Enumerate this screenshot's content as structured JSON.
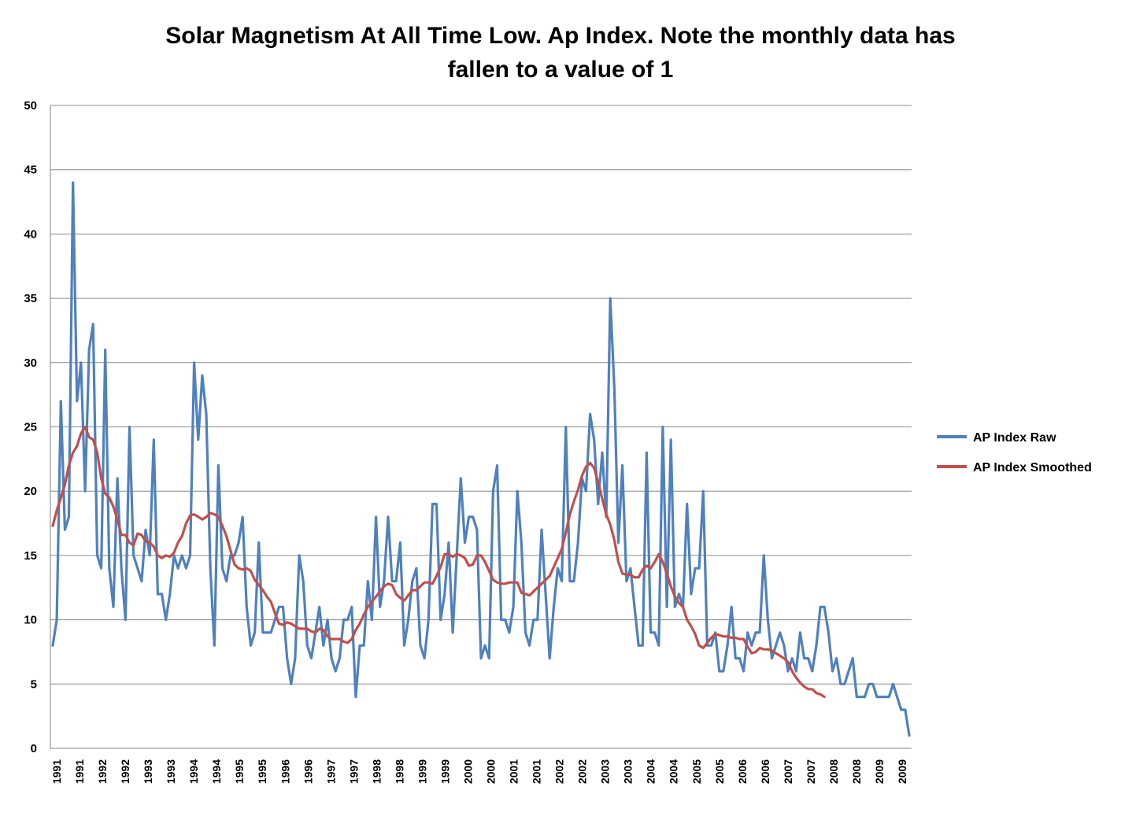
{
  "chart_data": {
    "type": "line",
    "title_lines": [
      "Solar Magnetism At All Time Low. Ap Index. Note the monthly data has",
      "fallen to a value of 1"
    ],
    "xlabel": "",
    "ylabel": "",
    "ylim": [
      0,
      50
    ],
    "ytick_labels": [
      "0",
      "5",
      "10",
      "15",
      "20",
      "25",
      "30",
      "35",
      "40",
      "45",
      "50"
    ],
    "grid": "horizontal",
    "legend_position": "right",
    "x_tick_labels": [
      "1991",
      "1991",
      "1992",
      "1992",
      "1993",
      "1993",
      "1994",
      "1994",
      "1995",
      "1995",
      "1996",
      "1996",
      "1997",
      "1997",
      "1998",
      "1998",
      "1999",
      "1999",
      "2000",
      "2000",
      "2001",
      "2001",
      "2002",
      "2002",
      "2003",
      "2003",
      "2004",
      "2004",
      "2005",
      "2005",
      "2006",
      "2006",
      "2007",
      "2007",
      "2008",
      "2008",
      "2009",
      "2009"
    ],
    "series": [
      {
        "name": "AP Index Raw",
        "color": "#4F81BD",
        "values": [
          8,
          10,
          27,
          17,
          18,
          44,
          27,
          30,
          20,
          31,
          33,
          15,
          14,
          31,
          14,
          11,
          21,
          14,
          10,
          25,
          15,
          14,
          13,
          17,
          15,
          24,
          12,
          12,
          10,
          12,
          15,
          14,
          15,
          14,
          15,
          30,
          24,
          29,
          26,
          14,
          8,
          22,
          14,
          13,
          15,
          15,
          16,
          18,
          11,
          8,
          9,
          16,
          9,
          9,
          9,
          10,
          11,
          11,
          7,
          5,
          7,
          15,
          13,
          8,
          7,
          9,
          11,
          8,
          10,
          7,
          6,
          7,
          10,
          10,
          11,
          4,
          8,
          8,
          13,
          10,
          18,
          11,
          13,
          18,
          13,
          13,
          16,
          8,
          10,
          13,
          14,
          8,
          7,
          10,
          19,
          19,
          10,
          12,
          16,
          9,
          15,
          21,
          16,
          18,
          18,
          17,
          7,
          8,
          7,
          20,
          22,
          10,
          10,
          9,
          11,
          20,
          16,
          9,
          8,
          10,
          10,
          17,
          12,
          7,
          11,
          14,
          13,
          25,
          13,
          13,
          16,
          21,
          20,
          26,
          24,
          19,
          23,
          18,
          35,
          28,
          16,
          22,
          13,
          14,
          11,
          8,
          8,
          23,
          9,
          9,
          8,
          25,
          11,
          24,
          11,
          12,
          11,
          19,
          12,
          14,
          14,
          20,
          8,
          8,
          9,
          6,
          6,
          8,
          11,
          7,
          7,
          6,
          9,
          8,
          9,
          9,
          15,
          10,
          7,
          8,
          9,
          8,
          6,
          7,
          6,
          9,
          7,
          7,
          6,
          8,
          11,
          11,
          9,
          6,
          7,
          5,
          5,
          6,
          7,
          4,
          4,
          4,
          5,
          5,
          4,
          4,
          4,
          4,
          5,
          4,
          3,
          3,
          1
        ]
      },
      {
        "name": "AP Index Smoothed",
        "color": "#C0504D",
        "values": [
          17.3,
          18.5,
          19.5,
          20.5,
          22,
          23,
          23.5,
          24.5,
          25,
          24.2,
          24,
          23,
          21,
          19.8,
          19.5,
          18.8,
          17.8,
          16.6,
          16.6,
          16.0,
          15.8,
          16.7,
          16.6,
          16.1,
          16.0,
          15.7,
          15.0,
          14.8,
          15.0,
          14.9,
          15.2,
          16,
          16.5,
          17.5,
          18.1,
          18.2,
          18.0,
          17.8,
          18.0,
          18.3,
          18.2,
          18.0,
          17.3,
          16.5,
          15.4,
          14.3,
          14.0,
          13.9,
          14.0,
          13.8,
          13.1,
          12.7,
          12.3,
          11.8,
          11.4,
          10.5,
          9.7,
          9.6,
          9.8,
          9.7,
          9.5,
          9.3,
          9.3,
          9.3,
          9.1,
          9.0,
          9.3,
          9.2,
          8.7,
          8.5,
          8.5,
          8.5,
          8.3,
          8.2,
          8.5,
          9.2,
          9.7,
          10.4,
          11.0,
          11.4,
          11.8,
          12.2,
          12.6,
          12.8,
          12.7,
          12.0,
          11.7,
          11.5,
          11.9,
          12.3,
          12.3,
          12.6,
          12.9,
          12.9,
          12.8,
          13.4,
          14.1,
          15.1,
          15.1,
          14.9,
          15.1,
          15.0,
          14.8,
          14.2,
          14.3,
          15.0,
          15.0,
          14.5,
          13.8,
          13.1,
          12.9,
          12.8,
          12.8,
          12.9,
          12.9,
          12.9,
          12.1,
          12.0,
          11.9,
          12.2,
          12.5,
          12.8,
          13.1,
          13.4,
          14.1,
          14.8,
          15.5,
          16.8,
          18.2,
          19.2,
          20.1,
          21.2,
          21.9,
          22.2,
          21.8,
          20.7,
          19.4,
          18.2,
          17.4,
          16.2,
          14.5,
          13.6,
          13.5,
          13.5,
          13.3,
          13.3,
          13.9,
          14.2,
          14.0,
          14.5,
          15.1,
          14.5,
          13.6,
          12.6,
          11.8,
          11.3,
          11.0,
          10.0,
          9.5,
          8.9,
          8.0,
          7.8,
          8.2,
          8.6,
          8.9,
          8.8,
          8.7,
          8.7,
          8.6,
          8.6,
          8.5,
          8.5,
          7.9,
          7.4,
          7.5,
          7.8,
          7.7,
          7.7,
          7.6,
          7.4,
          7.2,
          7.0,
          6.7,
          6.0,
          5.5,
          5.1,
          4.8,
          4.6,
          4.6,
          4.3,
          4.2,
          4.0
        ]
      }
    ]
  }
}
